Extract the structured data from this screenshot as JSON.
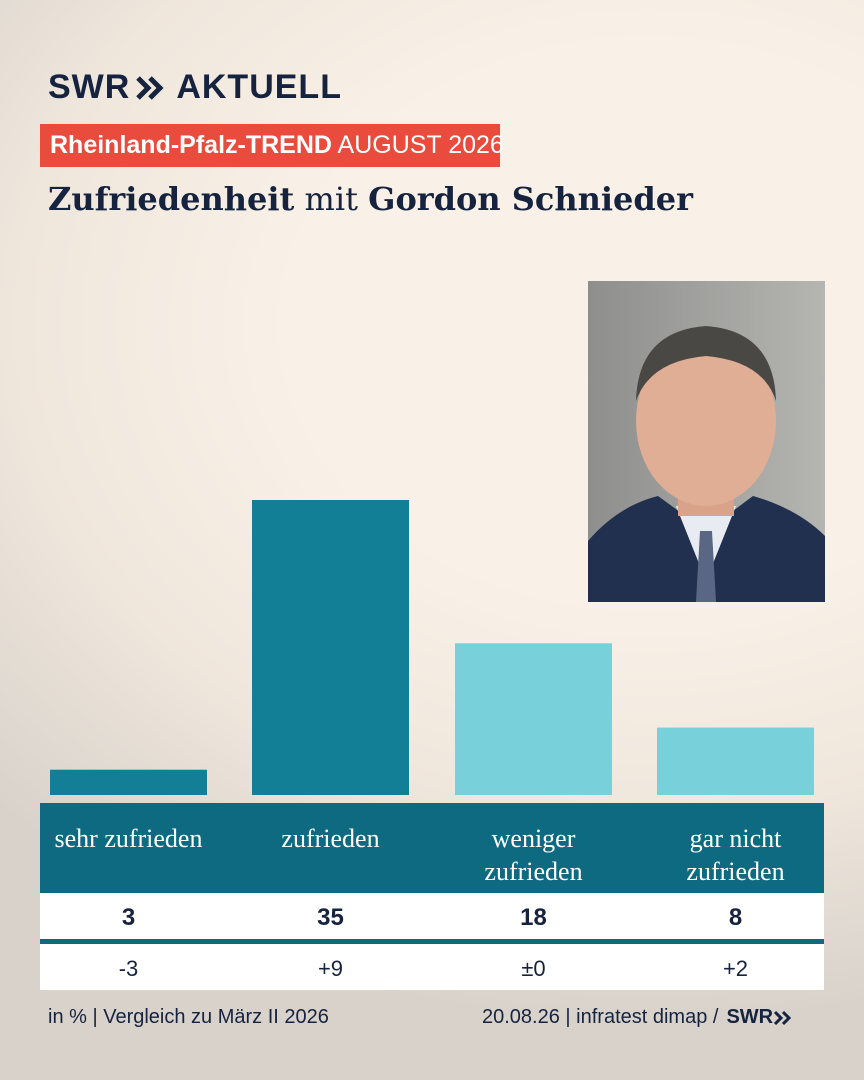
{
  "header": {
    "logo_text": [
      "SWR",
      "AKTUELL"
    ],
    "kicker": [
      "Rheinland-Pfalz-TREND",
      "AUGUST 2026"
    ],
    "title": [
      "Zufriedenheit",
      "mit",
      "Gordon Schnieder"
    ]
  },
  "chart_data": {
    "type": "bar",
    "categories": [
      "sehr zufrieden",
      "zufrieden",
      "weniger zufrieden",
      "gar nicht zufrieden"
    ],
    "values": [
      3,
      35,
      18,
      8
    ],
    "colors": [
      "#137f96",
      "#137f96",
      "#78d0da",
      "#78d0da"
    ],
    "change_values": [
      -3,
      9,
      0,
      2
    ],
    "change_labels": [
      "-3",
      "+9",
      "±0",
      "+2"
    ]
  },
  "footer": {
    "left": "in % | Vergleich zu März II 2026",
    "right": "20.08.26 | infratest dimap /",
    "logo": "SWR"
  }
}
